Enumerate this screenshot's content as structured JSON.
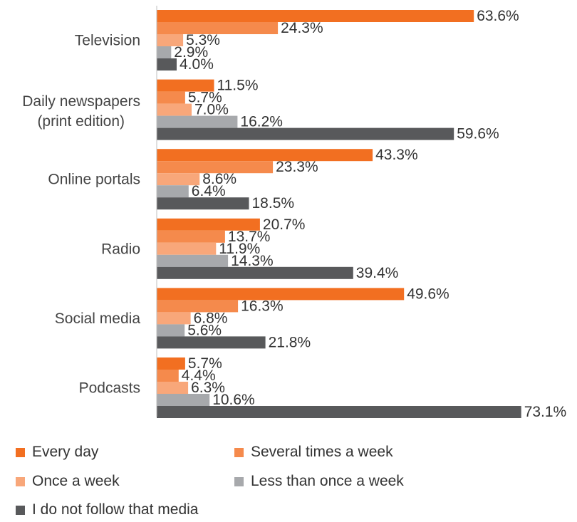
{
  "chart_data": {
    "type": "bar",
    "orientation": "horizontal",
    "categories": [
      "Television",
      "Daily newspapers (print edition)",
      "Online portals",
      "Radio",
      "Social media",
      "Podcasts"
    ],
    "series": [
      {
        "name": "Every day",
        "color": "#f26f21",
        "values": [
          63.6,
          11.5,
          43.3,
          20.7,
          49.6,
          5.7
        ]
      },
      {
        "name": "Several times a week",
        "color": "#f58a4c",
        "values": [
          24.3,
          5.7,
          23.3,
          13.7,
          16.3,
          4.4
        ]
      },
      {
        "name": "Once a week",
        "color": "#f8a77a",
        "values": [
          5.3,
          7.0,
          8.6,
          11.9,
          6.8,
          6.3
        ]
      },
      {
        "name": "Less than once a week",
        "color": "#a7a9ac",
        "values": [
          2.9,
          16.2,
          6.4,
          14.3,
          5.6,
          10.6
        ]
      },
      {
        "name": "I do not follow that media",
        "color": "#58595b",
        "values": [
          4.0,
          59.6,
          18.5,
          39.4,
          21.8,
          73.1
        ]
      }
    ],
    "value_suffix": "%",
    "xlim": [
      0,
      80
    ],
    "grid": false,
    "legend_position": "bottom"
  }
}
